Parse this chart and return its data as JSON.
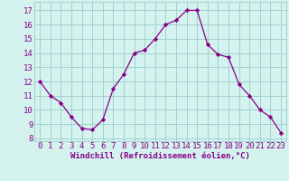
{
  "x": [
    0,
    1,
    2,
    3,
    4,
    5,
    6,
    7,
    8,
    9,
    10,
    11,
    12,
    13,
    14,
    15,
    16,
    17,
    18,
    19,
    20,
    21,
    22,
    23
  ],
  "y": [
    12.0,
    11.0,
    10.5,
    9.5,
    8.7,
    8.6,
    9.3,
    11.5,
    12.5,
    14.0,
    14.2,
    15.0,
    16.0,
    16.3,
    17.0,
    17.0,
    14.6,
    13.9,
    13.7,
    11.8,
    11.0,
    10.0,
    9.5,
    8.4
  ],
  "line_color": "#880088",
  "marker": "D",
  "marker_size": 2.2,
  "bg_color": "#d4f2ee",
  "grid_color": "#99cccc",
  "xlabel": "Windchill (Refroidissement éolien,°C)",
  "xlabel_color": "#880088",
  "xlabel_fontsize": 6.5,
  "ylabel_ticks": [
    8,
    9,
    10,
    11,
    12,
    13,
    14,
    15,
    16,
    17
  ],
  "xlim": [
    -0.5,
    23.5
  ],
  "ylim": [
    7.8,
    17.6
  ],
  "tick_fontsize": 6.5,
  "tick_color": "#880088",
  "linewidth": 0.9
}
